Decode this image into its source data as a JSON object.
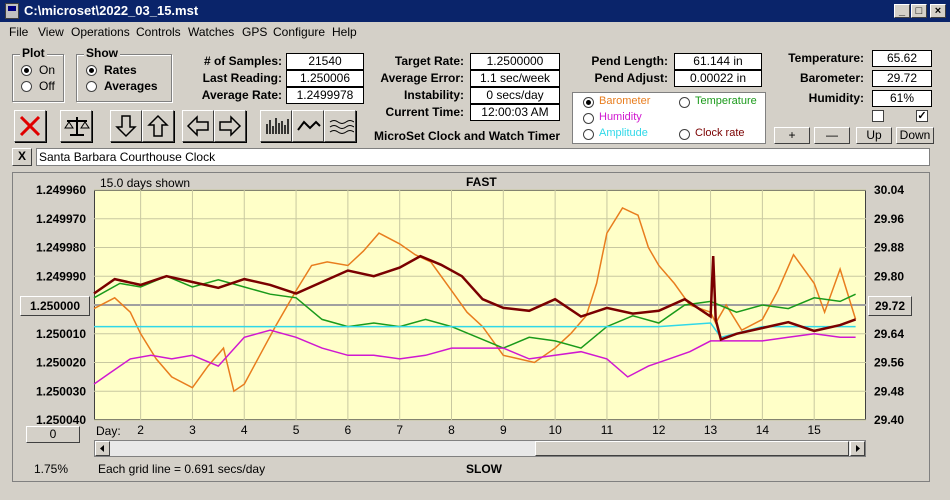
{
  "window": {
    "title": "C:\\microset\\2022_03_15.mst"
  },
  "menu": [
    "File",
    "View",
    "Operations",
    "Controls",
    "Watches",
    "GPS",
    "Configure",
    "Help"
  ],
  "plot_group": {
    "label": "Plot",
    "options": [
      "On",
      "Off"
    ],
    "selected": "On"
  },
  "show_group": {
    "label": "Show",
    "options": [
      "Rates",
      "Averages"
    ],
    "selected": "Rates"
  },
  "stats": {
    "samples_label": "# of Samples:",
    "samples": "21540",
    "last_reading_label": "Last Reading:",
    "last_reading": "1.250006",
    "average_rate_label": "Average Rate:",
    "average_rate": "1.2499978",
    "target_rate_label": "Target Rate:",
    "target_rate": "1.2500000",
    "average_error_label": "Average Error:",
    "average_error": "1.1 sec/week",
    "instability_label": "Instability:",
    "instability": "0 secs/day",
    "current_time_label": "Current Time:",
    "current_time": "12:00:03 AM",
    "pend_length_label": "Pend Length:",
    "pend_length": "61.144 in",
    "pend_adjust_label": "Pend Adjust:",
    "pend_adjust": "0.00022 in",
    "temperature_label": "Temperature:",
    "temperature": "65.62",
    "barometer_label": "Barometer:",
    "barometer": "29.72",
    "humidity_label": "Humidity:",
    "humidity": "61%"
  },
  "app_caption": "MicroSet Clock and Watch Timer",
  "sensor_options": [
    {
      "label": "Barometer",
      "color": "#e87d1e",
      "selected": true
    },
    {
      "label": "Temperature",
      "color": "#1a9a1a",
      "selected": false
    },
    {
      "label": "Humidity",
      "color": "#d018d0",
      "selected": false
    },
    {
      "label": "Clock rate",
      "color": "#7a0000",
      "selected": false
    },
    {
      "label": "Amplitude",
      "color": "#30d8e8",
      "selected": false
    }
  ],
  "right_buttons": {
    "plus": "+",
    "minus": "—",
    "up": "Up",
    "down": "Down"
  },
  "checkboxes": {
    "left_checked": false,
    "right_checked": true
  },
  "clock_name": "Santa Barbara Courthouse Clock",
  "close_x": "X",
  "chart_labels": {
    "days_shown": "15.0 days shown",
    "fast": "FAST",
    "slow": "SLOW",
    "grid_note": "Each grid line = 0.691 secs/day",
    "percent": "1.75%",
    "left_readout": "1.250000",
    "right_readout": "29.72",
    "zero_button": "0",
    "day_label": "Day:"
  },
  "chart_data": {
    "type": "line",
    "x_axis_ticks": [
      "2",
      "3",
      "4",
      "5",
      "6",
      "7",
      "8",
      "9",
      "10",
      "11",
      "12",
      "13",
      "14",
      "15"
    ],
    "xlim": [
      1.1,
      16.0
    ],
    "left_axis_ticks": [
      "1.249960",
      "1.249970",
      "1.249980",
      "1.249990",
      "1.250000",
      "1.250010",
      "1.250020",
      "1.250030",
      "1.250040"
    ],
    "left_ylim": [
      1.25004,
      1.24996
    ],
    "right_axis_ticks": [
      "30.04",
      "29.96",
      "29.88",
      "29.80",
      "29.72",
      "29.64",
      "29.56",
      "29.48",
      "29.40"
    ],
    "right_ylim": [
      29.4,
      30.04
    ],
    "grid": true,
    "series": [
      {
        "name": "Barometer",
        "color": "#e87d1e",
        "axis": "right",
        "x": [
          1.1,
          1.5,
          1.8,
          2.0,
          2.3,
          2.6,
          3.0,
          3.3,
          3.6,
          3.8,
          4.0,
          4.3,
          4.6,
          5.0,
          5.3,
          5.6,
          6.0,
          6.3,
          6.6,
          7.0,
          7.3,
          7.6,
          8.0,
          8.3,
          8.6,
          9.0,
          9.3,
          9.6,
          10.0,
          10.3,
          10.6,
          10.8,
          11.0,
          11.3,
          11.6,
          11.8,
          12.0,
          12.3,
          12.6,
          13.0,
          13.1,
          13.3,
          13.6,
          14.0,
          14.3,
          14.6,
          15.0,
          15.2,
          15.5,
          15.8
        ],
        "y": [
          29.71,
          29.74,
          29.7,
          29.64,
          29.57,
          29.52,
          29.49,
          29.55,
          29.6,
          29.48,
          29.5,
          29.58,
          29.66,
          29.76,
          29.83,
          29.84,
          29.83,
          29.87,
          29.92,
          29.89,
          29.86,
          29.84,
          29.76,
          29.7,
          29.66,
          29.58,
          29.57,
          29.56,
          29.6,
          29.64,
          29.69,
          29.78,
          29.92,
          29.99,
          29.97,
          29.88,
          29.83,
          29.78,
          29.72,
          29.7,
          29.67,
          29.72,
          29.65,
          29.68,
          29.76,
          29.86,
          29.78,
          29.7,
          29.82,
          29.68
        ]
      },
      {
        "name": "Temperature",
        "color": "#1a9a1a",
        "axis": "right",
        "x": [
          1.1,
          1.6,
          2.0,
          2.5,
          3.0,
          3.5,
          4.0,
          4.5,
          5.0,
          5.5,
          6.0,
          6.5,
          7.0,
          7.5,
          8.0,
          8.5,
          9.0,
          9.5,
          10.0,
          10.5,
          11.0,
          11.5,
          12.0,
          12.5,
          13.0,
          13.5,
          14.0,
          14.5,
          15.0,
          15.5,
          15.8
        ],
        "y": [
          29.74,
          29.78,
          29.77,
          29.8,
          29.77,
          29.79,
          29.77,
          29.75,
          29.74,
          29.68,
          29.66,
          29.67,
          29.66,
          29.68,
          29.66,
          29.63,
          29.6,
          29.63,
          29.62,
          29.6,
          29.66,
          29.69,
          29.67,
          29.72,
          29.73,
          29.7,
          29.72,
          29.71,
          29.74,
          29.73,
          29.75
        ]
      },
      {
        "name": "Humidity",
        "color": "#d018d0",
        "axis": "right",
        "x": [
          1.1,
          1.4,
          1.8,
          2.2,
          2.6,
          3.0,
          3.5,
          4.0,
          4.5,
          5.0,
          5.5,
          6.0,
          6.5,
          7.0,
          7.5,
          8.0,
          8.5,
          9.0,
          9.5,
          10.0,
          10.5,
          11.0,
          11.4,
          11.8,
          12.2,
          12.6,
          13.0,
          13.5,
          14.0,
          14.5,
          15.0,
          15.5,
          15.8
        ],
        "y": [
          29.5,
          29.53,
          29.57,
          29.58,
          29.57,
          29.58,
          29.55,
          29.63,
          29.65,
          29.63,
          29.6,
          29.58,
          29.58,
          29.57,
          29.58,
          29.6,
          29.6,
          29.6,
          29.57,
          29.58,
          29.59,
          29.57,
          29.52,
          29.55,
          29.57,
          29.59,
          29.62,
          29.62,
          29.62,
          29.63,
          29.64,
          29.63,
          29.63
        ]
      },
      {
        "name": "Amplitude",
        "color": "#30d8e8",
        "axis": "right",
        "x": [
          1.1,
          2.0,
          3.0,
          4.0,
          5.0,
          6.0,
          7.0,
          8.0,
          9.0,
          10.0,
          11.0,
          12.0,
          13.0,
          13.2,
          14.0,
          15.0,
          15.8
        ],
        "y": [
          29.66,
          29.66,
          29.66,
          29.66,
          29.66,
          29.66,
          29.66,
          29.66,
          29.66,
          29.66,
          29.66,
          29.66,
          29.67,
          29.63,
          29.66,
          29.66,
          29.66
        ]
      },
      {
        "name": "Clock rate",
        "color": "#7a0000",
        "axis": "left",
        "x": [
          1.1,
          1.5,
          2.0,
          2.5,
          3.0,
          3.5,
          4.0,
          4.5,
          5.0,
          5.5,
          6.0,
          6.5,
          7.0,
          7.4,
          7.8,
          8.2,
          8.6,
          9.0,
          9.5,
          10.0,
          10.5,
          11.0,
          11.5,
          12.0,
          12.5,
          13.0,
          13.05,
          13.1,
          13.2,
          13.5,
          14.0,
          14.5,
          15.0,
          15.5,
          15.8
        ],
        "y": [
          1.249996,
          1.249991,
          1.249993,
          1.24999,
          1.249992,
          1.249994,
          1.249991,
          1.249993,
          1.249996,
          1.249992,
          1.249988,
          1.24999,
          1.249987,
          1.249983,
          1.249986,
          1.24999,
          1.249998,
          1.250001,
          1.250002,
          1.249998,
          1.250004,
          1.250001,
          1.250003,
          1.250002,
          1.249998,
          1.250004,
          1.249983,
          1.250005,
          1.250012,
          1.25001,
          1.250008,
          1.250006,
          1.250009,
          1.250007,
          1.250005
        ]
      }
    ]
  }
}
